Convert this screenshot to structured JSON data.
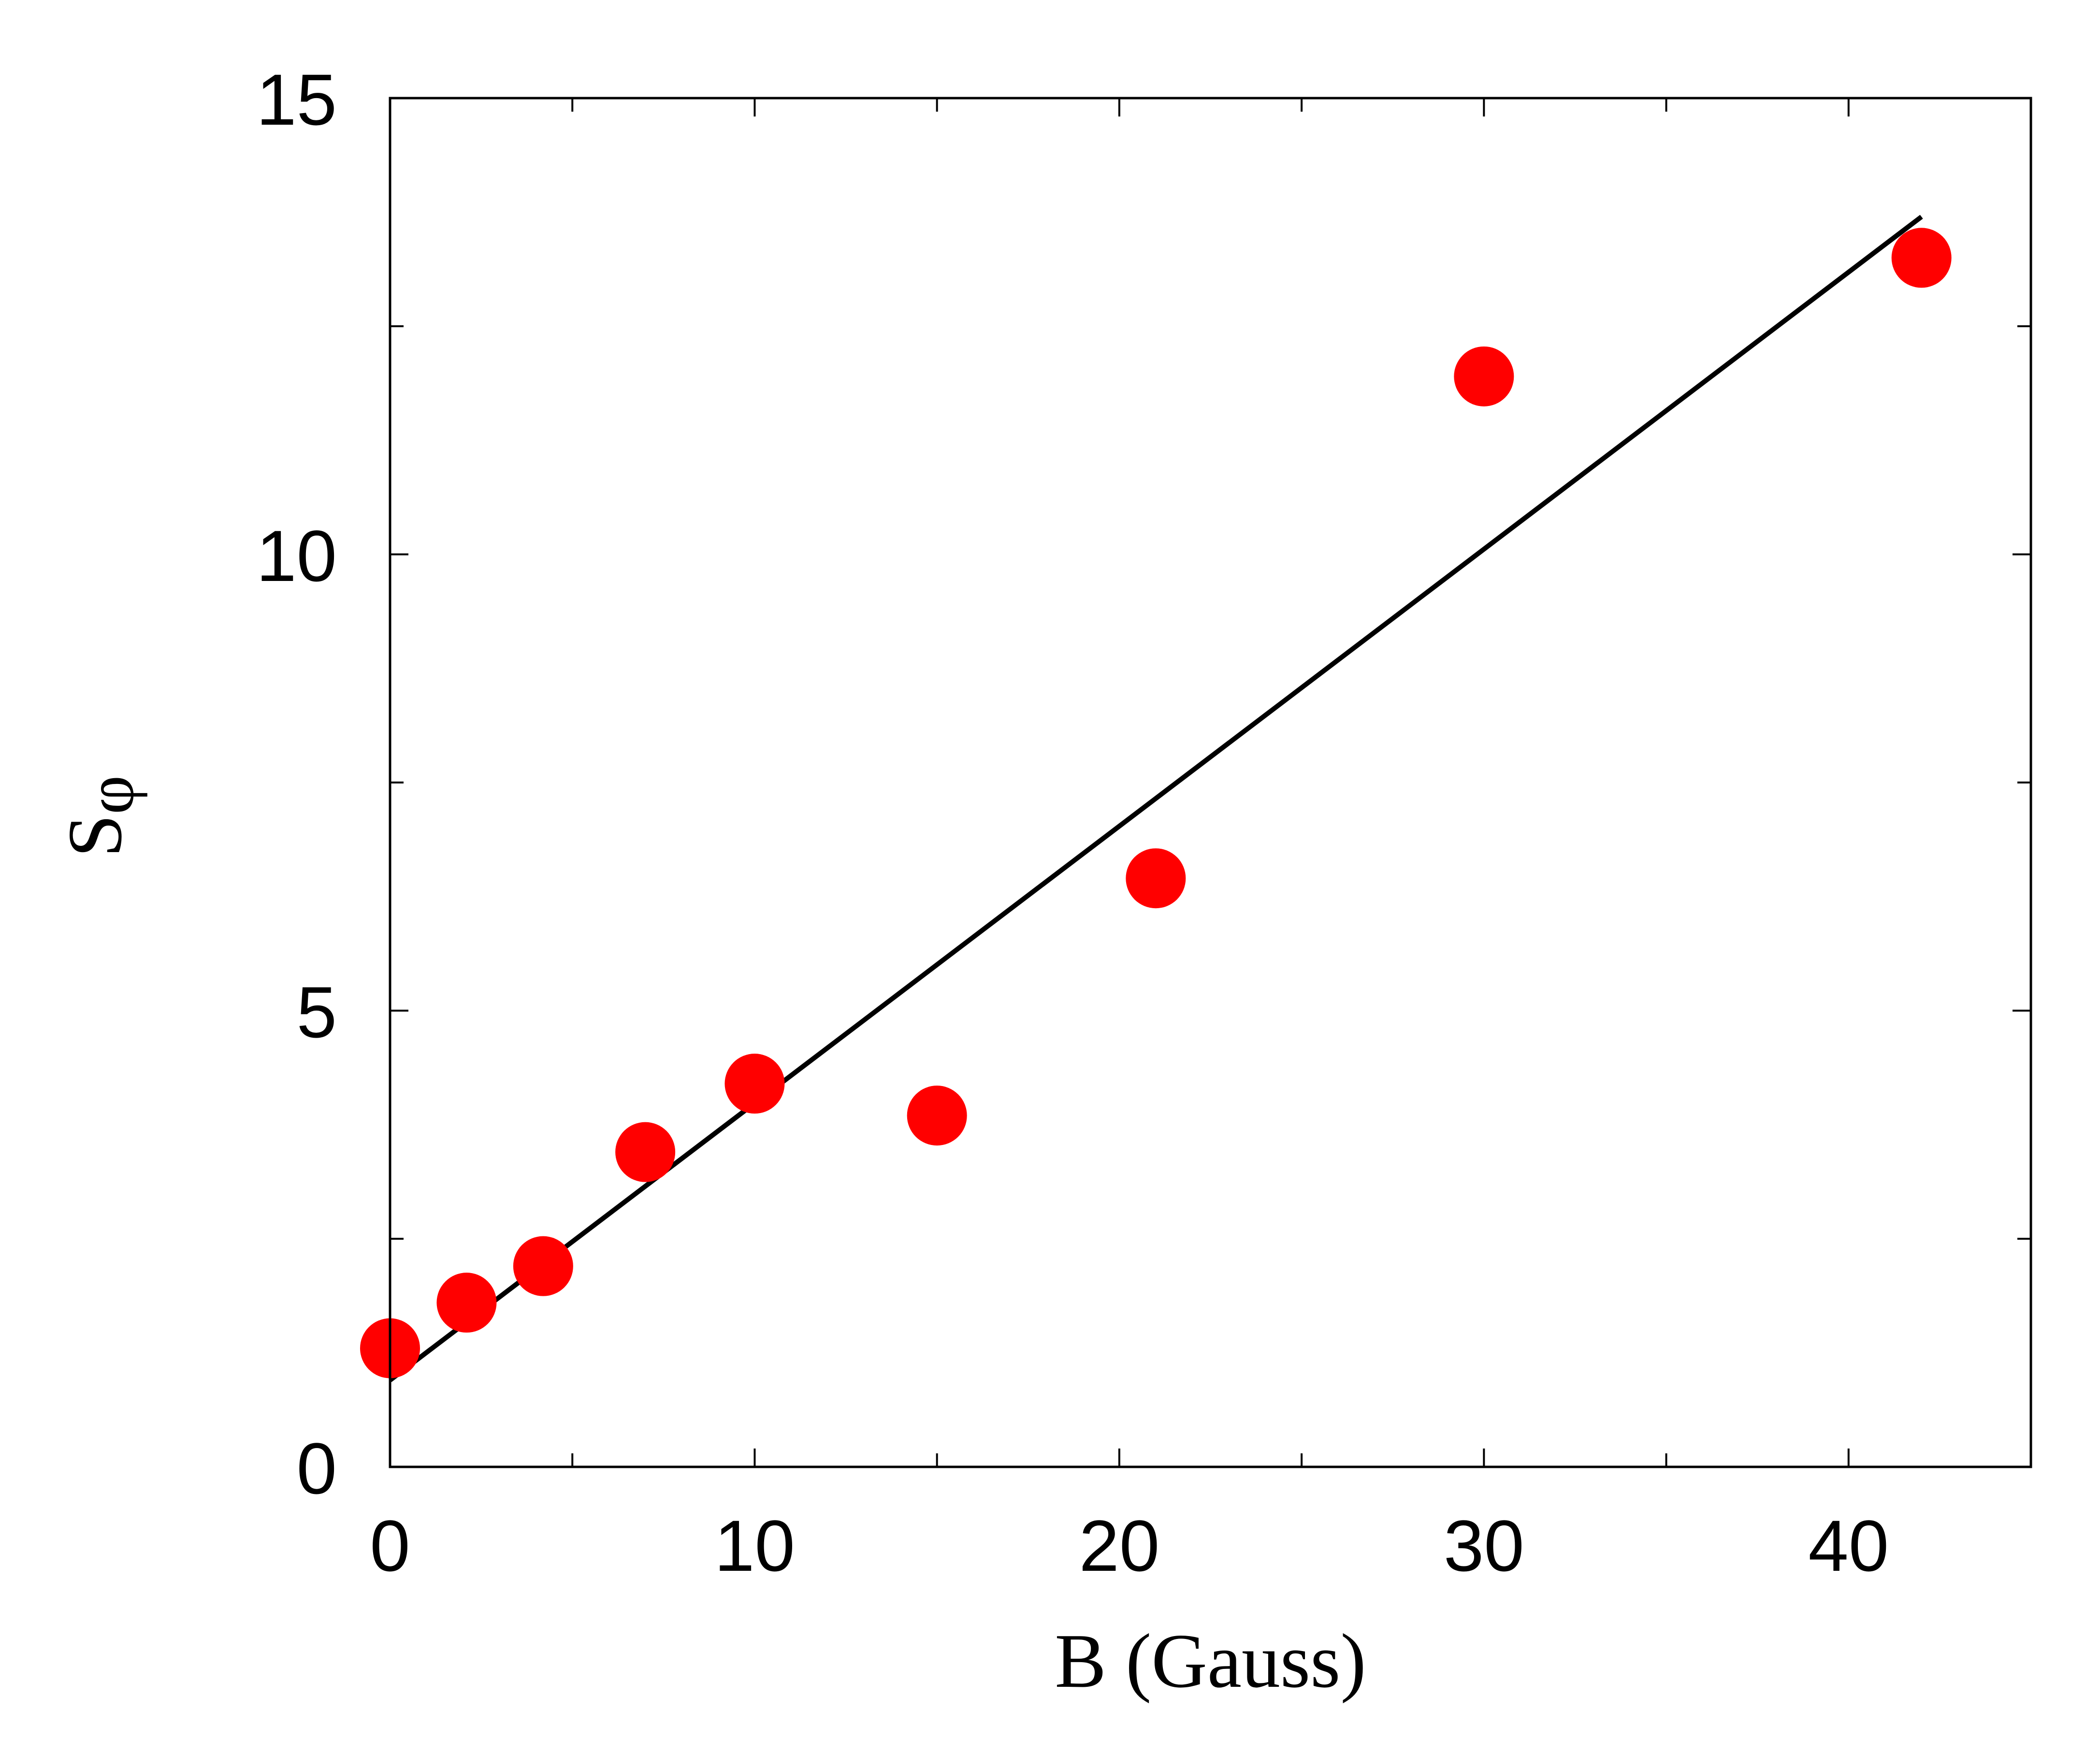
{
  "chart_data": {
    "type": "scatter",
    "title": "",
    "xlabel": "B (Gauss)",
    "ylabel_main": "S",
    "ylabel_sub": "φ",
    "xlim": [
      0,
      45
    ],
    "ylim": [
      0,
      15
    ],
    "x_ticks": [
      0,
      10,
      20,
      30,
      40
    ],
    "x_minor_ticks": [
      5,
      15,
      25,
      35
    ],
    "y_ticks": [
      0,
      5,
      10,
      15
    ],
    "y_minor_ticks": [
      2.5,
      7.5,
      12.5
    ],
    "grid": false,
    "series": [
      {
        "type": "scatter",
        "color": "#ff0000",
        "points": [
          {
            "x": 0,
            "y": 1.3
          },
          {
            "x": 2.1,
            "y": 1.8
          },
          {
            "x": 4.2,
            "y": 2.2
          },
          {
            "x": 7,
            "y": 3.45
          },
          {
            "x": 10,
            "y": 4.2
          },
          {
            "x": 15,
            "y": 3.85
          },
          {
            "x": 21,
            "y": 6.45
          },
          {
            "x": 30,
            "y": 11.95
          },
          {
            "x": 42,
            "y": 13.25
          }
        ]
      },
      {
        "type": "line",
        "color": "#000000",
        "points": [
          {
            "x": 0,
            "y": 0.95
          },
          {
            "x": 42,
            "y": 13.7
          }
        ]
      }
    ]
  }
}
